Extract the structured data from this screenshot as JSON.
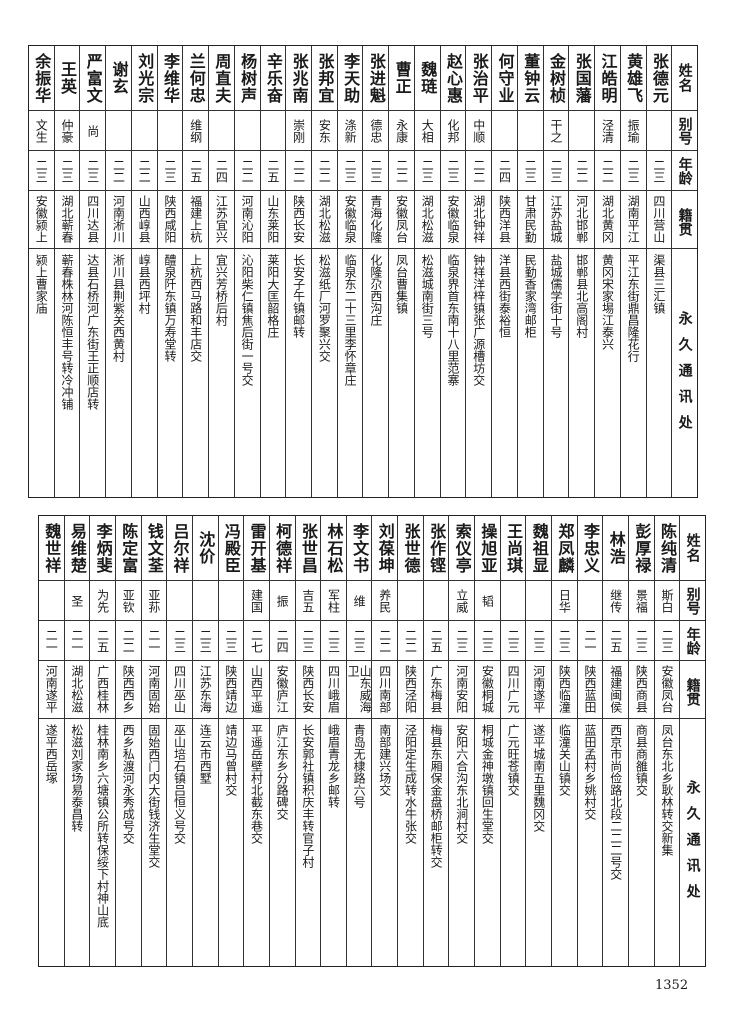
{
  "headers": {
    "name": "姓名",
    "alias": "别号",
    "age": "年龄",
    "native": "籍贯",
    "addr": "永久通讯处"
  },
  "top": {
    "names": [
      "张德元",
      "黄雄飞",
      "江皓明",
      "张国藩",
      "金树桢",
      "董钟云",
      "何守业",
      "张治平",
      "赵心惠",
      "魏琏",
      "曹正",
      "张进魁",
      "李天助",
      "张邦宜",
      "张兆南",
      "辛乐奋",
      "杨树声",
      "周直夫",
      "兰何忠",
      "李维华",
      "刘光宗",
      "谢玄",
      "严富文",
      "王英",
      "余振华"
    ],
    "aliases": [
      "",
      "振瑜",
      "泾清",
      "",
      "干之",
      "",
      "",
      "中顺",
      "化邦",
      "大相",
      "永康",
      "德忠",
      "涤新",
      "安东",
      "崇刚",
      "",
      "",
      "",
      "维纲",
      "",
      "",
      "",
      "尚",
      "仲豪",
      "文生"
    ],
    "ages": [
      "二三",
      "二三",
      "二二",
      "二二",
      "二三",
      "二三",
      "二四",
      "二二",
      "二三",
      "二三",
      "二二",
      "二三",
      "二三",
      "二二",
      "二二",
      "二五",
      "二二",
      "二四",
      "二五",
      "二三",
      "二二",
      "二二",
      "二三",
      "二三",
      "二三"
    ],
    "natives": [
      "四川营山",
      "湖南平江",
      "湖北黄冈",
      "河北邯郸",
      "江苏盐城",
      "甘肃民勤",
      "陕西洋县",
      "湖北钟祥",
      "安徽临泉",
      "湖北松滋",
      "安徽凤台",
      "青海化隆",
      "安徽临泉",
      "湖北松滋",
      "陕西长安",
      "山东莱阳",
      "河南沁阳",
      "江苏宜兴",
      "福建上杭",
      "陕西咸阳",
      "山西崞县",
      "河南淅川",
      "四川达县",
      "湖北蕲春",
      "安徽颍上"
    ],
    "addrs": [
      "渠县三汇镇",
      "平江东街鼎昌隆花行",
      "黄冈宋家埸江泰兴",
      "邯郸县北高阁村",
      "盐城儒学街十号",
      "民勤香家湾邮柜",
      "洋县西街泰裕恒",
      "钟祥洋梓镇张广源槽坊交",
      "临泉界首东南十八里范寨",
      "松滋城南街三号",
      "凤台曹集镇",
      "化隆尕西沟庄",
      "临泉东二十三里李怀章庄",
      "松滋纸厂河罗聚兴交",
      "长安子午镇邮转",
      "莱阳大匡韶格庄",
      "沁阳柴仁镇焦后街一号交",
      "宜兴芳桥后村",
      "上杭西马路和丰店交",
      "醴泉阡东镇万寿堂转",
      "崞县西坪村",
      "淅川县荆紫关西黄村",
      "达县石桥河广东街王正顺店转",
      "蕲春株林河陈恒丰号转冷冲铺",
      "颍上曹家庙"
    ]
  },
  "bottom": {
    "names": [
      "陈纯清",
      "彭厚禄",
      "林浩",
      "李忠义",
      "郑凤麟",
      "魏祖显",
      "王尚琪",
      "操旭亚",
      "索仪亭",
      "张作铿",
      "张世德",
      "刘葆坤",
      "李文书",
      "林石松",
      "张世昌",
      "柯德祥",
      "雷开基",
      "冯殿臣",
      "沈价",
      "吕尔祥",
      "钱文荃",
      "陈定富",
      "李炳斐",
      "易维楚",
      "魏世祥"
    ],
    "aliases": [
      "斯白",
      "景福",
      "继传",
      "",
      "日华",
      "",
      "",
      "韬",
      "立威",
      "",
      "",
      "养民",
      "维",
      "军柱",
      "吉五",
      "振",
      "建国",
      "",
      "",
      "",
      "亚荪",
      "亚钦",
      "为先",
      "圣",
      ""
    ],
    "ages": [
      "二三",
      "二三",
      "二五",
      "二一",
      "二三",
      "二三",
      "二三",
      "二三",
      "二三",
      "二五",
      "二二",
      "二二",
      "二三",
      "二三",
      "二三",
      "二四",
      "二七",
      "二三",
      "二三",
      "二三",
      "二一",
      "二二",
      "二五",
      "二一",
      "二一"
    ],
    "natives": [
      "安徽凤台",
      "陕西商县",
      "福建闽侯",
      "陕西蓝田",
      "陕西临潼",
      "河南遂平",
      "四川广元",
      "安徽桐城",
      "河南安阳",
      "广东梅县",
      "陕西泾阳",
      "四川南部",
      "山东威海卫",
      "四川峨眉",
      "陕西长安",
      "安徽庐江",
      "山西平遥",
      "陕西靖边",
      "江苏东海",
      "四川巫山",
      "河南固始",
      "陕西西乡",
      "广西桂林",
      "湖北松滋",
      "河南遂平"
    ],
    "addrs": [
      "凤台东北乡耿林转交新集",
      "商县商雒镇交",
      "西京市尚俭路北段二二二号交",
      "蓝田孟村乡姚村交",
      "临潼关山镇交",
      "遂平城南五里魏冈交",
      "广元旺苍镇交",
      "桐城金神墩镇回生堂交",
      "安阳六合沟东北涧村交",
      "梅县东厢保金盘桥邮柜转交",
      "泾阳定生成转水牛张交",
      "南部建兴场交",
      "青岛无棣路六号",
      "峨眉青龙乡邮转",
      "长安郭社镇积庆丰转官子村",
      "庐江东乡分路碑交",
      "平遥岳壁村北截东巷交",
      "靖边马曾村交",
      "连云市西墅",
      "巫山培石镇吕恒义号交",
      "固始西门内大街钱济生堂交",
      "西乡私渡河永秀成号交",
      "桂林南乡六塘镇公所转保绥下村神山底",
      "松滋刘家场易泰昌转",
      "遂平西岳塚"
    ]
  },
  "page_number": "1352"
}
